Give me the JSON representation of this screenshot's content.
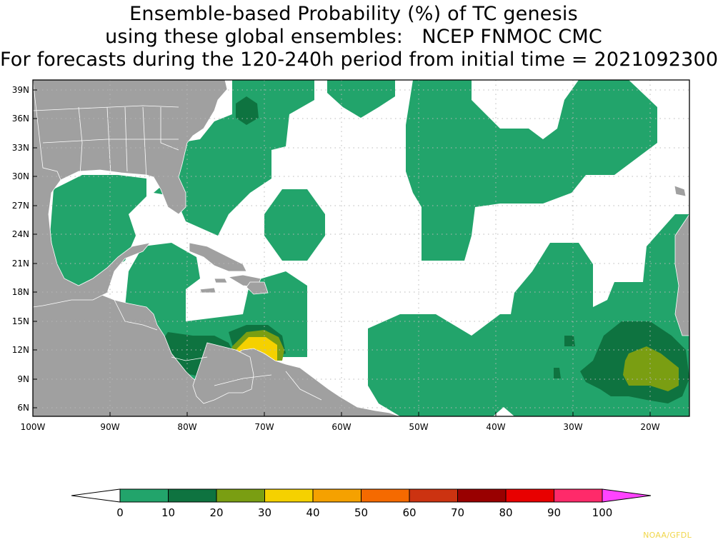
{
  "title": {
    "line1": "Ensemble-based Probability (%) of TC genesis",
    "line2": "using these global ensembles:   NCEP FNMOC CMC",
    "line3": "For forecasts during the 120-240h period from initial time = 2021092300"
  },
  "map": {
    "lat_labels": [
      "39N",
      "36N",
      "33N",
      "30N",
      "27N",
      "24N",
      "21N",
      "18N",
      "15N",
      "12N",
      "9N",
      "6N"
    ],
    "lon_labels": [
      "100W",
      "90W",
      "80W",
      "70W",
      "60W",
      "50W",
      "40W",
      "30W",
      "20W"
    ],
    "colors": {
      "land": "#a0a0a0",
      "border": "#ffffff",
      "ocean_background": "#ffffff"
    }
  },
  "colorbar": {
    "labels": [
      "0",
      "10",
      "20",
      "30",
      "40",
      "50",
      "60",
      "70",
      "80",
      "90",
      "100"
    ],
    "colors": [
      "#22a46b",
      "#0e7340",
      "#7a9e12",
      "#f5d100",
      "#f5a100",
      "#f56a00",
      "#cc3311",
      "#990000",
      "#e80000",
      "#ff2a6a",
      "#ff44ff"
    ],
    "under_color": "#ffffff"
  },
  "credit": "NOAA/GFDL"
}
